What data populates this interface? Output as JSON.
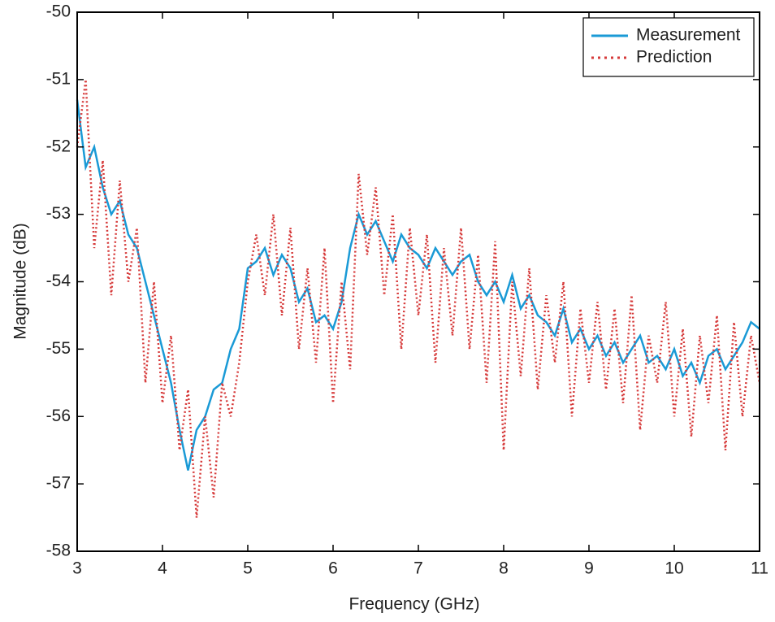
{
  "chart_data": {
    "type": "line",
    "xlabel": "Frequency (GHz)",
    "ylabel": "Magnitude (dB)",
    "xlim": [
      3,
      11
    ],
    "ylim": [
      -58,
      -50
    ],
    "xticks": [
      3,
      4,
      5,
      6,
      7,
      8,
      9,
      10,
      11
    ],
    "yticks": [
      -58,
      -57,
      -56,
      -55,
      -54,
      -53,
      -52,
      -51,
      -50
    ],
    "legend": "upper right",
    "x": [
      3.0,
      3.1,
      3.2,
      3.3,
      3.4,
      3.5,
      3.6,
      3.7,
      3.8,
      3.9,
      4.0,
      4.1,
      4.2,
      4.3,
      4.4,
      4.5,
      4.6,
      4.7,
      4.8,
      4.9,
      5.0,
      5.1,
      5.2,
      5.3,
      5.4,
      5.5,
      5.6,
      5.7,
      5.8,
      5.9,
      6.0,
      6.1,
      6.2,
      6.3,
      6.4,
      6.5,
      6.6,
      6.7,
      6.8,
      6.9,
      7.0,
      7.1,
      7.2,
      7.3,
      7.4,
      7.5,
      7.6,
      7.7,
      7.8,
      7.9,
      8.0,
      8.1,
      8.2,
      8.3,
      8.4,
      8.5,
      8.6,
      8.7,
      8.8,
      8.9,
      9.0,
      9.1,
      9.2,
      9.3,
      9.4,
      9.5,
      9.6,
      9.7,
      9.8,
      9.9,
      10.0,
      10.1,
      10.2,
      10.3,
      10.4,
      10.5,
      10.6,
      10.7,
      10.8,
      10.9,
      11.0
    ],
    "series": [
      {
        "name": "Measurement",
        "color": "#1a9ad6",
        "style": "solid",
        "values": [
          -51.3,
          -52.3,
          -52.0,
          -52.6,
          -53.0,
          -52.8,
          -53.3,
          -53.5,
          -54.0,
          -54.5,
          -55.0,
          -55.5,
          -56.2,
          -56.8,
          -56.2,
          -56.0,
          -55.6,
          -55.5,
          -55.0,
          -54.7,
          -53.8,
          -53.7,
          -53.5,
          -53.9,
          -53.6,
          -53.8,
          -54.3,
          -54.1,
          -54.6,
          -54.5,
          -54.7,
          -54.3,
          -53.5,
          -53.0,
          -53.3,
          -53.1,
          -53.4,
          -53.7,
          -53.3,
          -53.5,
          -53.6,
          -53.8,
          -53.5,
          -53.7,
          -53.9,
          -53.7,
          -53.6,
          -54.0,
          -54.2,
          -54.0,
          -54.3,
          -53.9,
          -54.4,
          -54.2,
          -54.5,
          -54.6,
          -54.8,
          -54.4,
          -54.9,
          -54.7,
          -55.0,
          -54.8,
          -55.1,
          -54.9,
          -55.2,
          -55.0,
          -54.8,
          -55.2,
          -55.1,
          -55.3,
          -55.0,
          -55.4,
          -55.2,
          -55.5,
          -55.1,
          -55.0,
          -55.3,
          -55.1,
          -54.9,
          -54.6,
          -54.7
        ]
      },
      {
        "name": "Prediction",
        "color": "#d63a3a",
        "style": "dotted",
        "values": [
          -52.0,
          -51.0,
          -53.5,
          -52.2,
          -54.2,
          -52.5,
          -54.0,
          -53.2,
          -55.5,
          -54.0,
          -55.8,
          -54.8,
          -56.5,
          -55.6,
          -57.5,
          -56.0,
          -57.2,
          -55.5,
          -56.0,
          -55.2,
          -54.0,
          -53.3,
          -54.2,
          -53.0,
          -54.5,
          -53.2,
          -55.0,
          -53.8,
          -55.2,
          -53.5,
          -55.8,
          -54.0,
          -55.3,
          -52.4,
          -53.6,
          -52.6,
          -54.2,
          -53.0,
          -55.0,
          -53.2,
          -54.5,
          -53.3,
          -55.2,
          -53.5,
          -54.8,
          -53.2,
          -55.0,
          -53.6,
          -55.5,
          -53.4,
          -56.5,
          -54.0,
          -55.4,
          -53.8,
          -55.6,
          -54.2,
          -55.2,
          -54.0,
          -56.0,
          -54.4,
          -55.5,
          -54.3,
          -55.6,
          -54.4,
          -55.8,
          -54.2,
          -56.2,
          -54.8,
          -55.5,
          -54.3,
          -56.0,
          -54.7,
          -56.3,
          -54.8,
          -55.8,
          -54.5,
          -56.5,
          -54.6,
          -56.0,
          -54.8,
          -55.5
        ]
      }
    ]
  }
}
